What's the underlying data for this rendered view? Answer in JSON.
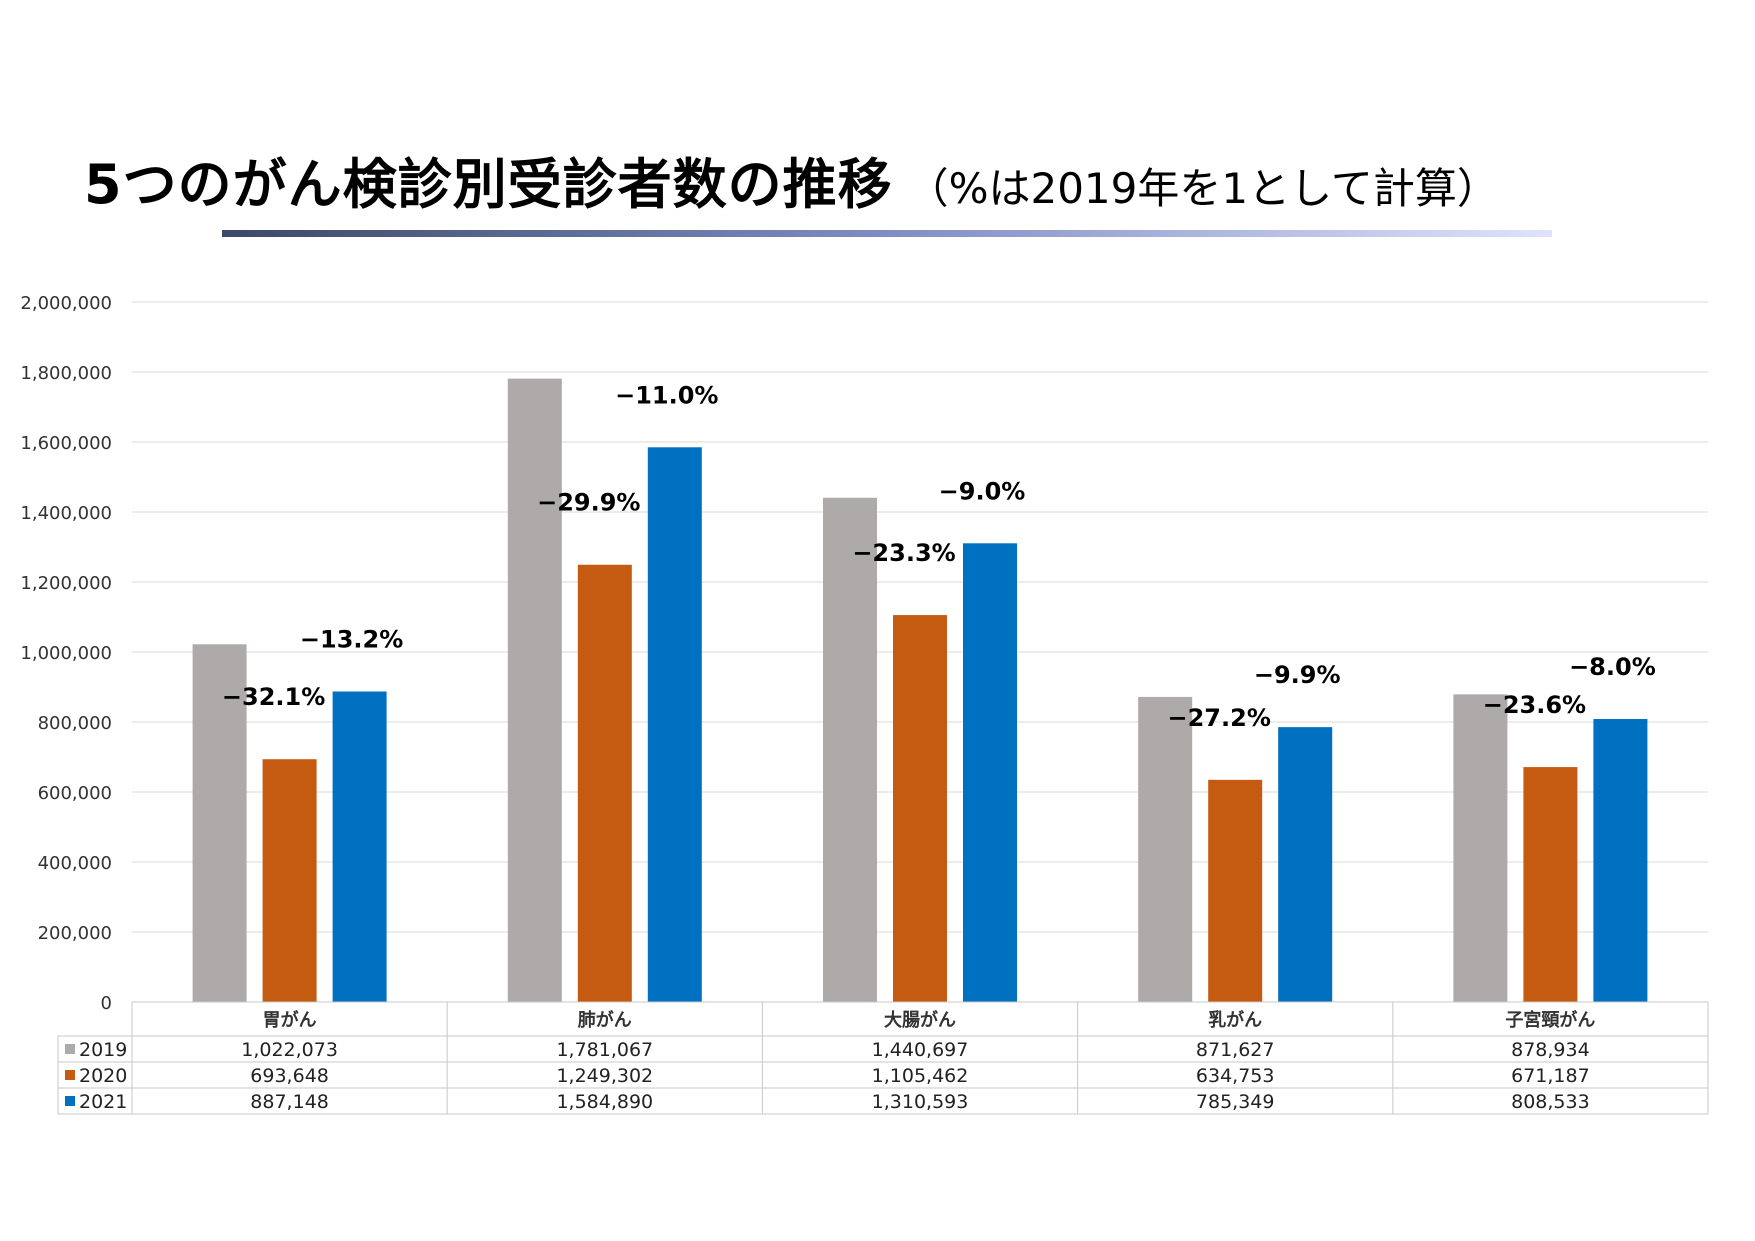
{
  "title": {
    "main": "5つのがん検診別受診者数の推移",
    "note": "（%は2019年を1として計算）"
  },
  "colors": {
    "2019": "#aeaaaa",
    "2020": "#c55a11",
    "2021": "#0070c0"
  },
  "chart_data": {
    "type": "bar",
    "categories": [
      "胃がん",
      "肺がん",
      "大腸がん",
      "乳がん",
      "子宮頸がん"
    ],
    "series": [
      {
        "name": "2019",
        "values": [
          1022073,
          1781067,
          1440697,
          871627,
          878934
        ]
      },
      {
        "name": "2020",
        "values": [
          693648,
          1249302,
          1105462,
          634753,
          671187
        ]
      },
      {
        "name": "2021",
        "values": [
          887148,
          1584890,
          1310593,
          785349,
          808533
        ]
      }
    ],
    "table_values": {
      "2019": [
        "1,022,073",
        "1,781,067",
        "1,440,697",
        "871,627",
        "878,934"
      ],
      "2020": [
        "693,648",
        "1,249,302",
        "1,105,462",
        "634,753",
        "671,187"
      ],
      "2021": [
        "887,148",
        "1,584,890",
        "1,310,593",
        "785,349",
        "808,533"
      ]
    },
    "annotations": {
      "2020": [
        "−32.1%",
        "−29.9%",
        "−23.3%",
        "−27.2%",
        "−23.6%"
      ],
      "2021": [
        "−13.2%",
        "−11.0%",
        "−9.0%",
        "−9.9%",
        "−8.0%"
      ]
    },
    "yticks": [
      "0",
      "200,000",
      "400,000",
      "600,000",
      "800,000",
      "1,000,000",
      "1,200,000",
      "1,400,000",
      "1,600,000",
      "1,800,000",
      "2,000,000"
    ],
    "ylim": [
      0,
      2000000
    ],
    "grid": true,
    "legend": "data-table"
  }
}
